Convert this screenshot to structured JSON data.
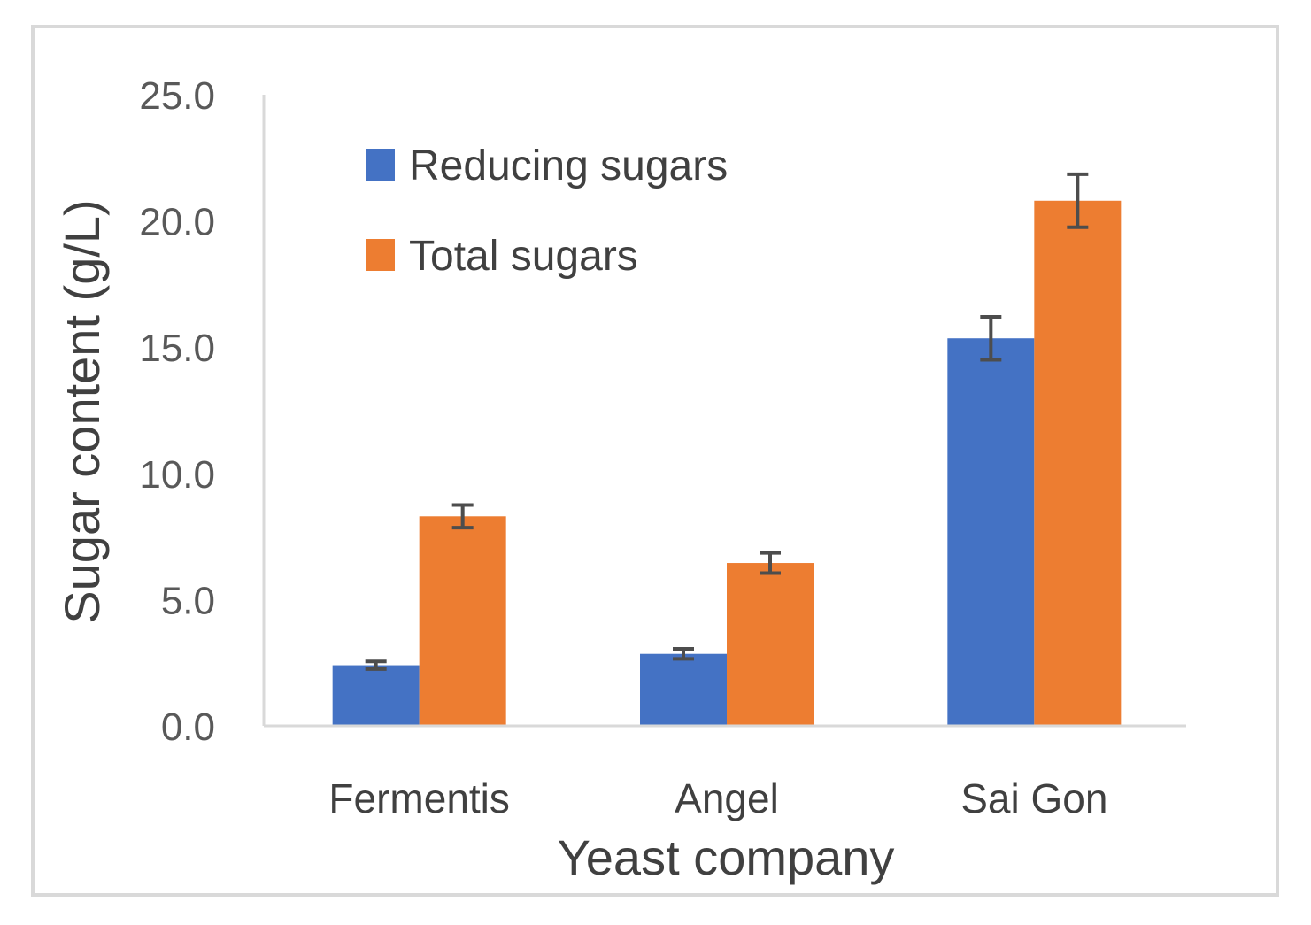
{
  "chart_data": {
    "type": "bar",
    "title": "",
    "xlabel": "Yeast company",
    "ylabel": "Sugar content (g/L)",
    "categories": [
      "Fermentis",
      "Angel",
      "Sai Gon"
    ],
    "ylim": [
      0,
      25
    ],
    "yticks": [
      "0.0",
      "5.0",
      "10.0",
      "15.0",
      "20.0",
      "25.0"
    ],
    "ytick_values": [
      0,
      5,
      10,
      15,
      20,
      25
    ],
    "grid": false,
    "legend_position": "top-left",
    "series": [
      {
        "name": "Reducing sugars",
        "color": "#4472C4",
        "values": [
          2.4,
          2.85,
          15.35
        ],
        "errors": [
          0.15,
          0.2,
          0.85
        ]
      },
      {
        "name": "Total sugars",
        "color": "#ED7D31",
        "values": [
          8.3,
          6.45,
          20.8
        ],
        "errors": [
          0.45,
          0.4,
          1.05
        ]
      }
    ]
  }
}
